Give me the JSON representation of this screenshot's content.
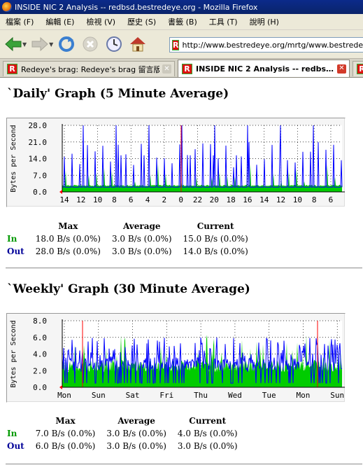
{
  "window": {
    "title": "INSIDE NIC 2 Analysis -- redbsd.bestredeye.org - Mozilla Firefox"
  },
  "menu": [
    "檔案 (F)",
    "編輯 (E)",
    "檢視 (V)",
    "歷史 (S)",
    "書籤 (B)",
    "工具 (T)",
    "說明 (H)"
  ],
  "url": "http://www.bestredeye.org/mrtg/www.bestredeye.org_",
  "tabs": [
    {
      "label": "Redeye's brag: Redeye's brag 留言版",
      "active": false
    },
    {
      "label": "INSIDE NIC 2 Analysis -- redbs…",
      "active": true
    }
  ],
  "colors": {
    "in": "#00cc00",
    "out": "#0000ff",
    "in_label": "#009900",
    "out_label": "#000099",
    "marker": "#ff0000"
  },
  "daily": {
    "heading": "`Daily' Graph (5 Minute Average)",
    "ylabel": "Bytes per Second",
    "yticks": [
      "28.0",
      "21.0",
      "14.0",
      "7.0",
      "0.0"
    ],
    "xticks": [
      "14",
      "12",
      "10",
      "8",
      "6",
      "4",
      "2",
      "0",
      "22",
      "20",
      "18",
      "16",
      "14",
      "12",
      "10",
      "8",
      "6"
    ],
    "stats": {
      "headers": [
        "Max",
        "Average",
        "Current"
      ],
      "rows": [
        {
          "label": "In",
          "max": "18.0 B/s (0.0%)",
          "avg": "3.0 B/s (0.0%)",
          "cur": "15.0 B/s (0.0%)"
        },
        {
          "label": "Out",
          "max": "28.0 B/s (0.0%)",
          "avg": "3.0 B/s (0.0%)",
          "cur": "14.0 B/s (0.0%)"
        }
      ]
    }
  },
  "weekly": {
    "heading": "`Weekly' Graph (30 Minute Average)",
    "ylabel": "Bytes per Second",
    "yticks": [
      "8.0",
      "6.0",
      "4.0",
      "2.0",
      "0.0"
    ],
    "xticks": [
      "Mon",
      "Sun",
      "Sat",
      "Fri",
      "Thu",
      "Wed",
      "Tue",
      "Mon",
      "Sun"
    ],
    "stats": {
      "headers": [
        "Max",
        "Average",
        "Current"
      ],
      "rows": [
        {
          "label": "In",
          "max": "7.0 B/s (0.0%)",
          "avg": "3.0 B/s (0.0%)",
          "cur": "4.0 B/s (0.0%)"
        },
        {
          "label": "Out",
          "max": "6.0 B/s (0.0%)",
          "avg": "3.0 B/s (0.0%)",
          "cur": "3.0 B/s (0.0%)"
        }
      ]
    }
  },
  "chart_data": [
    {
      "type": "area",
      "title": "`Daily' Graph (5 Minute Average)",
      "ylabel": "Bytes per Second",
      "ylim": [
        0,
        28
      ],
      "x": [
        "14",
        "12",
        "10",
        "8",
        "6",
        "4",
        "2",
        "0",
        "22",
        "20",
        "18",
        "16",
        "14",
        "12",
        "10",
        "8",
        "6"
      ],
      "grid": true,
      "series": [
        {
          "name": "In",
          "baseline": 3.0,
          "max": 18.0
        },
        {
          "name": "Out",
          "baseline": 2.0,
          "max": 28.0
        }
      ]
    },
    {
      "type": "area",
      "title": "`Weekly' Graph (30 Minute Average)",
      "ylabel": "Bytes per Second",
      "ylim": [
        0,
        8
      ],
      "x": [
        "Mon",
        "Sun",
        "Sat",
        "Fri",
        "Thu",
        "Wed",
        "Tue",
        "Mon",
        "Sun"
      ],
      "grid": true,
      "series": [
        {
          "name": "In",
          "baseline": 3.0,
          "max": 7.0
        },
        {
          "name": "Out",
          "baseline": 3.0,
          "max": 6.0
        }
      ]
    }
  ]
}
